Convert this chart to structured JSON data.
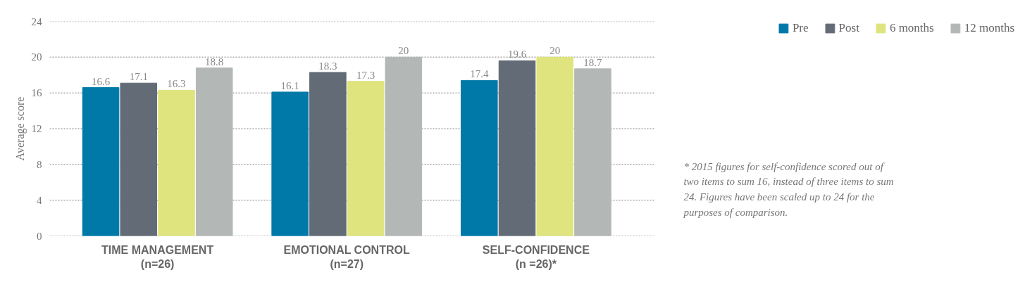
{
  "chart_data": {
    "type": "bar",
    "ylabel": "Average score",
    "categories": [
      "TIME MANAGEMENT\n(n=26)",
      "EMOTIONAL CONTROL\n(n=27)",
      "SELF-CONFIDENCE\n(n =26)*"
    ],
    "series": [
      {
        "name": "Pre",
        "color": "#0079a8",
        "values": [
          16.6,
          16.1,
          17.4
        ]
      },
      {
        "name": "Post",
        "color": "#636b77",
        "values": [
          17.1,
          18.3,
          19.6
        ]
      },
      {
        "name": "6 months",
        "color": "#dfe47f",
        "values": [
          16.3,
          17.3,
          20
        ]
      },
      {
        "name": "12 months",
        "color": "#b3b8b6",
        "values": [
          18.8,
          20,
          18.7
        ]
      }
    ],
    "ylim": [
      0,
      24
    ],
    "yticks": [
      0,
      4,
      8,
      12,
      16,
      20,
      24
    ],
    "grid": "y",
    "data_labels": true,
    "legend": "top right",
    "annotations": [
      "* 2015 figures for self-confidence scored out of two items to sum 16, instead of three items to sum 24. Figures have been scaled up to 24 for the purposes of comparison."
    ]
  }
}
